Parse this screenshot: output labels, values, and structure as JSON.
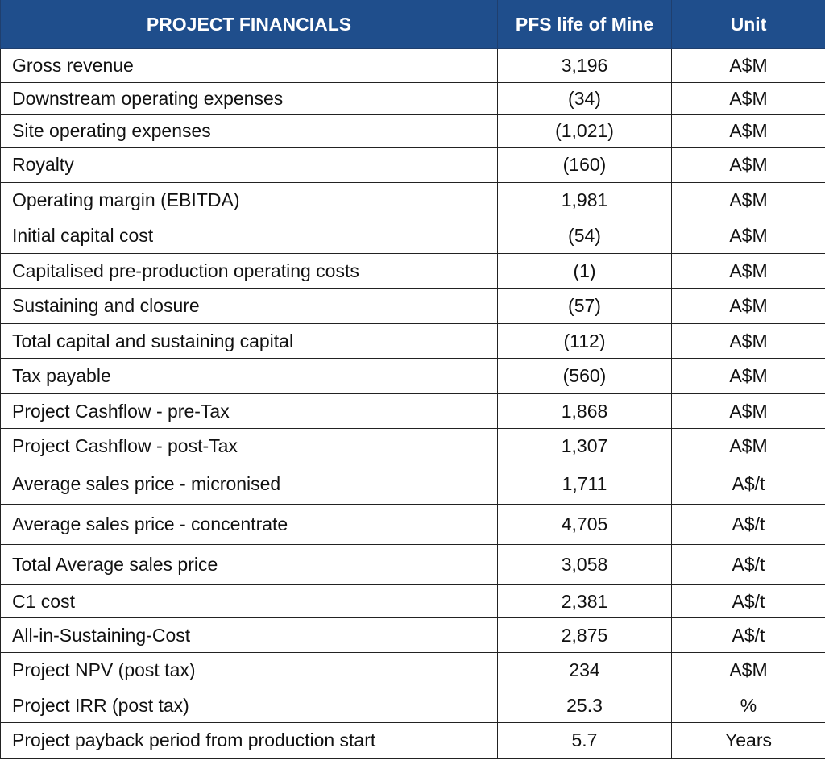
{
  "table": {
    "headers": [
      "PROJECT FINANCIALS",
      "PFS life of Mine",
      "Unit"
    ],
    "rows": [
      {
        "metric": "Gross revenue",
        "value": "3,196",
        "unit": "A$M"
      },
      {
        "metric": "Downstream operating expenses",
        "value": "(34)",
        "unit": "A$M"
      },
      {
        "metric": "Site operating expenses",
        "value": "(1,021)",
        "unit": "A$M"
      },
      {
        "metric": "Royalty",
        "value": "(160)",
        "unit": "A$M"
      },
      {
        "metric": "Operating margin (EBITDA)",
        "value": "1,981",
        "unit": "A$M"
      },
      {
        "metric": "Initial capital cost",
        "value": "(54)",
        "unit": "A$M"
      },
      {
        "metric": "Capitalised pre-production operating costs",
        "value": "(1)",
        "unit": "A$M"
      },
      {
        "metric": "Sustaining and closure",
        "value": "(57)",
        "unit": "A$M"
      },
      {
        "metric": "Total capital and sustaining capital",
        "value": "(112)",
        "unit": "A$M"
      },
      {
        "metric": "Tax payable",
        "value": "(560)",
        "unit": "A$M"
      },
      {
        "metric": "Project Cashflow - pre-Tax",
        "value": "1,868",
        "unit": "A$M"
      },
      {
        "metric": "Project Cashflow - post-Tax",
        "value": "1,307",
        "unit": "A$M"
      },
      {
        "metric": "Average sales price - micronised",
        "value": "1,711",
        "unit": "A$/t"
      },
      {
        "metric": "Average sales price - concentrate",
        "value": "4,705",
        "unit": "A$/t"
      },
      {
        "metric": "Total Average sales price",
        "value": "3,058",
        "unit": "A$/t"
      },
      {
        "metric": "C1 cost",
        "value": "2,381",
        "unit": "A$/t"
      },
      {
        "metric": "All-in-Sustaining-Cost",
        "value": "2,875",
        "unit": "A$/t"
      },
      {
        "metric": "Project NPV (post tax)",
        "value": "234",
        "unit": "A$M"
      },
      {
        "metric": "Project IRR (post tax)",
        "value": "25.3",
        "unit": "%"
      },
      {
        "metric": "Project payback period from production start",
        "value": "5.7",
        "unit": "Years"
      }
    ]
  },
  "colors": {
    "header_background": "#1f4e8c",
    "header_text": "#ffffff",
    "border": "#222222"
  }
}
